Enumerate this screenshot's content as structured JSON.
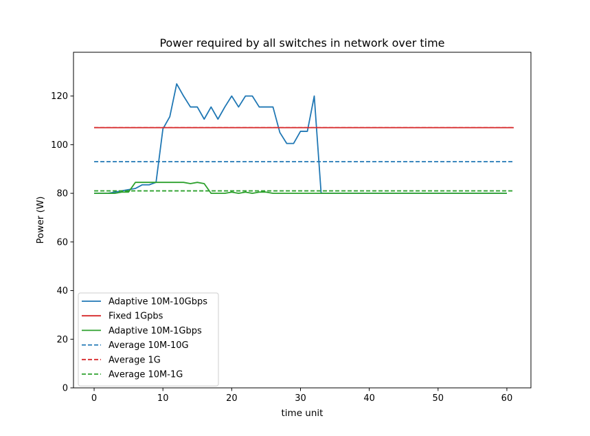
{
  "chart_data": {
    "type": "line",
    "title": "Power required by all switches in network over time",
    "xlabel": "time unit",
    "ylabel": "Power (W)",
    "xlim": [
      -3,
      63.5
    ],
    "ylim": [
      0,
      138
    ],
    "xticks": [
      0,
      10,
      20,
      30,
      40,
      50,
      60
    ],
    "yticks": [
      0,
      20,
      40,
      60,
      80,
      100,
      120
    ],
    "grid": false,
    "legend_position": "lower-left",
    "colors": {
      "blue": "#1f77b4",
      "red": "#d62728",
      "green": "#2ca02c"
    },
    "series": [
      {
        "name": "Adaptive 10M-10Gbps",
        "color": "#1f77b4",
        "style": "solid",
        "x": [
          0,
          1,
          2,
          3,
          4,
          5,
          6,
          7,
          8,
          9,
          10,
          11,
          12,
          13,
          14,
          15,
          16,
          17,
          18,
          19,
          20,
          21,
          22,
          23,
          24,
          25,
          26,
          27,
          28,
          29,
          30,
          31,
          32,
          33,
          34,
          35,
          36,
          37,
          38,
          39,
          40,
          41,
          42,
          43,
          44,
          45,
          46,
          47,
          48,
          49,
          50,
          51,
          52,
          53,
          54,
          55,
          56,
          57,
          58,
          59,
          60
        ],
        "y": [
          80,
          80,
          80,
          80.5,
          81,
          81.5,
          82,
          83.5,
          83.5,
          84.5,
          106.5,
          111.5,
          125,
          120,
          115.5,
          115.5,
          110.5,
          115.5,
          110.5,
          115.5,
          120,
          115.5,
          120,
          120,
          115.5,
          115.5,
          115.5,
          105,
          100.5,
          100.5,
          105.5,
          105.5,
          120,
          80,
          80,
          80,
          80,
          80,
          80,
          80,
          80,
          80,
          80,
          80,
          80,
          80,
          80,
          80,
          80,
          80,
          80,
          80,
          80,
          80,
          80,
          80,
          80,
          80,
          80,
          80,
          80
        ]
      },
      {
        "name": "Fixed 1Gpbs",
        "color": "#d62728",
        "style": "solid",
        "x": [
          0,
          61
        ],
        "y": [
          107,
          107
        ]
      },
      {
        "name": "Adaptive 10M-1Gbps",
        "color": "#2ca02c",
        "style": "solid",
        "x": [
          0,
          1,
          2,
          3,
          4,
          5,
          6,
          7,
          8,
          9,
          10,
          11,
          12,
          13,
          14,
          15,
          16,
          17,
          18,
          19,
          20,
          21,
          22,
          23,
          24,
          25,
          26,
          27,
          28,
          29,
          30,
          31,
          32,
          33,
          34,
          35,
          36,
          37,
          38,
          39,
          40,
          41,
          42,
          43,
          44,
          45,
          46,
          47,
          48,
          49,
          50,
          51,
          52,
          53,
          54,
          55,
          56,
          57,
          58,
          59,
          60
        ],
        "y": [
          80,
          80,
          80,
          80,
          80.5,
          80.5,
          84.5,
          84.5,
          84.5,
          84.5,
          84.5,
          84.5,
          84.5,
          84.5,
          84,
          84.5,
          84,
          80,
          80,
          80,
          80.5,
          80,
          80.5,
          80,
          80.5,
          80.5,
          80,
          80,
          80,
          80,
          80,
          80,
          80,
          80,
          80,
          80,
          80,
          80,
          80,
          80,
          80,
          80,
          80,
          80,
          80,
          80,
          80,
          80,
          80,
          80,
          80,
          80,
          80,
          80,
          80,
          80,
          80,
          80,
          80,
          80,
          80
        ]
      },
      {
        "name": "Average 10M-10G",
        "color": "#1f77b4",
        "style": "dashed",
        "x": [
          0,
          61
        ],
        "y": [
          93,
          93
        ]
      },
      {
        "name": "Average 1G",
        "color": "#d62728",
        "style": "dashed",
        "x": [
          0,
          61
        ],
        "y": [
          107,
          107
        ]
      },
      {
        "name": "Average 10M-1G",
        "color": "#2ca02c",
        "style": "dashed",
        "x": [
          0,
          61
        ],
        "y": [
          81,
          81
        ]
      }
    ]
  }
}
